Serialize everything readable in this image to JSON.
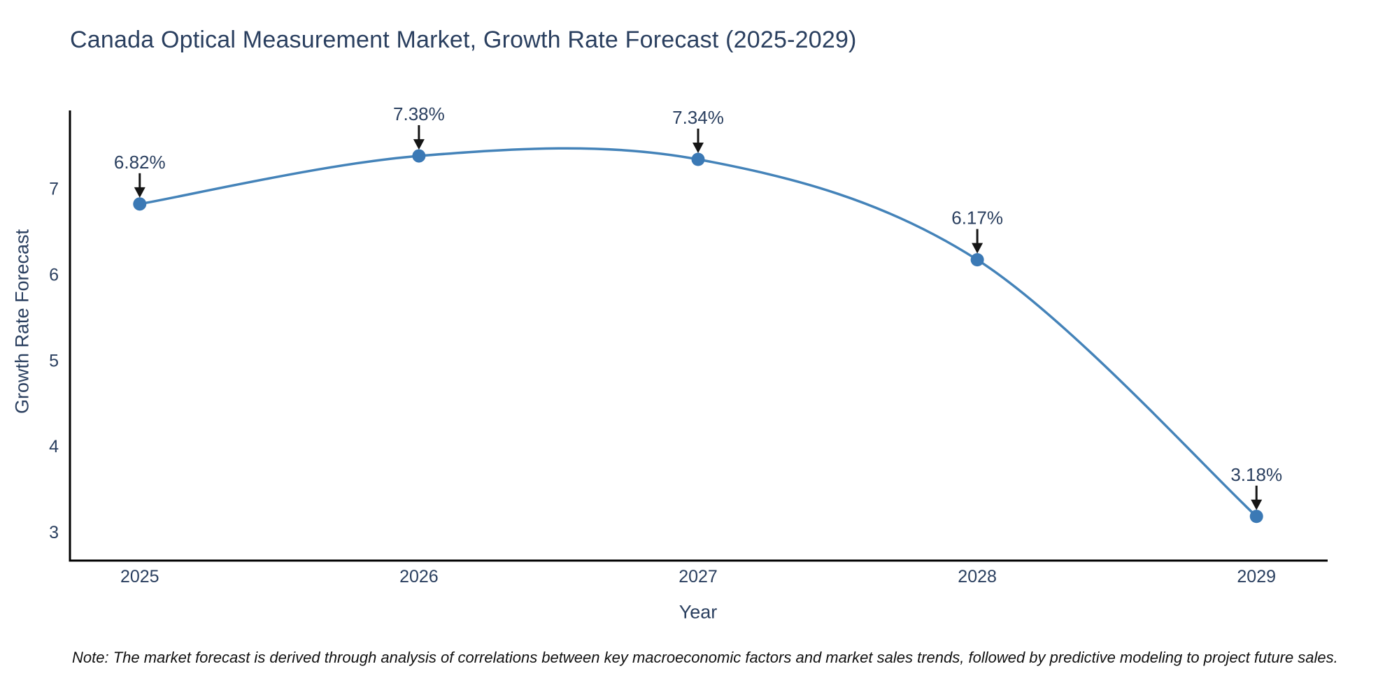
{
  "chart_data": {
    "type": "line",
    "line_shape": "spline",
    "title": "Canada Optical Measurement Market, Growth Rate Forecast (2025-2029)",
    "xlabel": "Year",
    "ylabel": "Growth Rate Forecast",
    "x": [
      2025,
      2026,
      2027,
      2028,
      2029
    ],
    "categories": [
      "2025",
      "2026",
      "2027",
      "2028",
      "2029"
    ],
    "series": [
      {
        "name": "Growth Rate Forecast",
        "values": [
          6.82,
          7.38,
          7.34,
          6.17,
          3.18
        ]
      }
    ],
    "point_labels": [
      "6.82%",
      "7.38%",
      "7.34%",
      "6.17%",
      "3.18%"
    ],
    "yticks": [
      3,
      4,
      5,
      6,
      7
    ],
    "ylim": [
      2.665,
      7.91
    ],
    "xlim": [
      2024.75,
      2029.255
    ],
    "grid": false,
    "legend_position": "none",
    "colors": {
      "line": "#4483b9",
      "marker": "#3b79b5",
      "axis": "#000000",
      "text": "#2a3f5f",
      "annotation_arrow": "#151515",
      "background": "#ffffff"
    }
  },
  "note": "Note: The market forecast is derived through analysis of correlations between key macroeconomic factors and market sales trends, followed by predictive modeling to project future sales."
}
